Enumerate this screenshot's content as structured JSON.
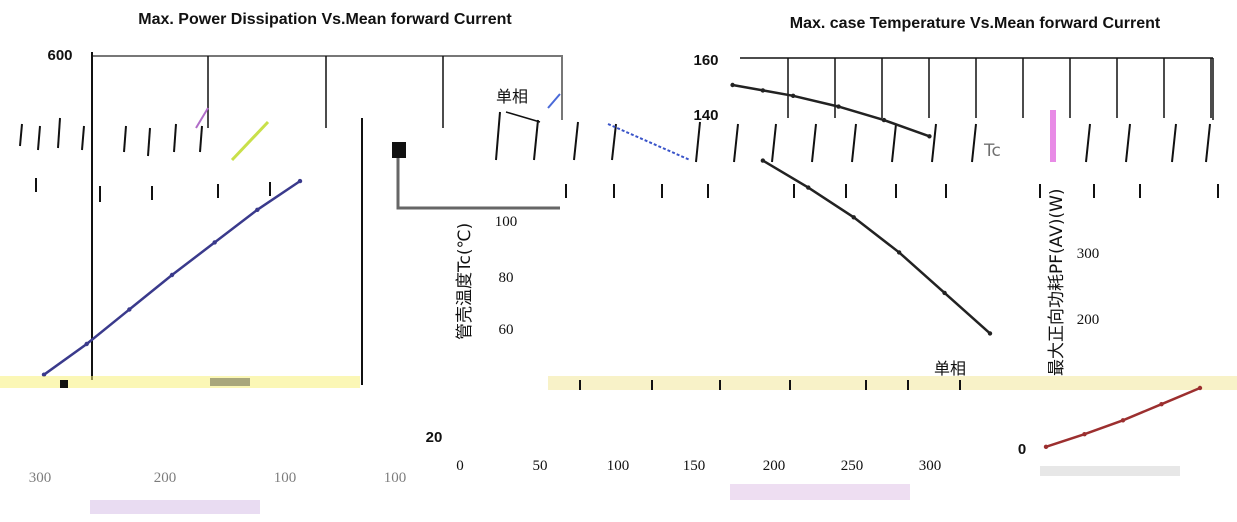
{
  "chart_data": [
    {
      "type": "line",
      "title": "Max. Power Dissipation Vs.Mean forward Current",
      "xlabel": "",
      "ylabel": "",
      "ylim": [
        0,
        600
      ],
      "y_ticks": [
        "600"
      ],
      "x_ticks": [
        "300",
        "200",
        "100",
        "100",
        "100"
      ],
      "series": [
        {
          "name": "",
          "color": "#3a3a8c",
          "x": [
            0,
            50,
            100,
            150,
            200,
            250,
            300
          ],
          "y": [
            40,
            120,
            210,
            300,
            385,
            470,
            545
          ]
        }
      ],
      "annotations": [],
      "grid": true
    },
    {
      "type": "line",
      "title": "Max. case Temperature Vs.Mean forward Current",
      "xlabel": "",
      "ylabel": "管壳温度Tc(℃)",
      "ylim": [
        20,
        160
      ],
      "y_ticks": [
        "160",
        "140",
        "100",
        "80",
        "60",
        "20"
      ],
      "x_ticks": [
        "0",
        "50",
        "100",
        "150",
        "200",
        "250",
        "300"
      ],
      "series": [
        {
          "name": "",
          "color": "#222222",
          "x": [
            180,
            200,
            220,
            250,
            280,
            310
          ],
          "y": [
            150,
            148,
            146,
            142,
            137,
            131
          ]
        },
        {
          "name": "",
          "color": "#222222",
          "x": [
            200,
            230,
            260,
            290,
            320,
            350
          ],
          "y": [
            122,
            112,
            101,
            88,
            73,
            58
          ]
        }
      ],
      "annotations": [
        "单相",
        "单相"
      ],
      "grid": true
    },
    {
      "type": "line",
      "title": "",
      "xlabel": "",
      "ylabel": "最大正向功耗PF(AV)(W)",
      "ylim": [
        0,
        400
      ],
      "y_ticks": [
        "300",
        "200",
        "0"
      ],
      "x_ticks": [],
      "series": [
        {
          "name": "",
          "color": "#9c2f2f",
          "x": [
            0,
            50,
            100,
            150,
            200
          ],
          "y": [
            5,
            60,
            120,
            190,
            260
          ]
        }
      ],
      "annotations": [],
      "grid": false
    }
  ],
  "overlay": {
    "tc_fragment": "Tc",
    "y_value_140": "140"
  }
}
